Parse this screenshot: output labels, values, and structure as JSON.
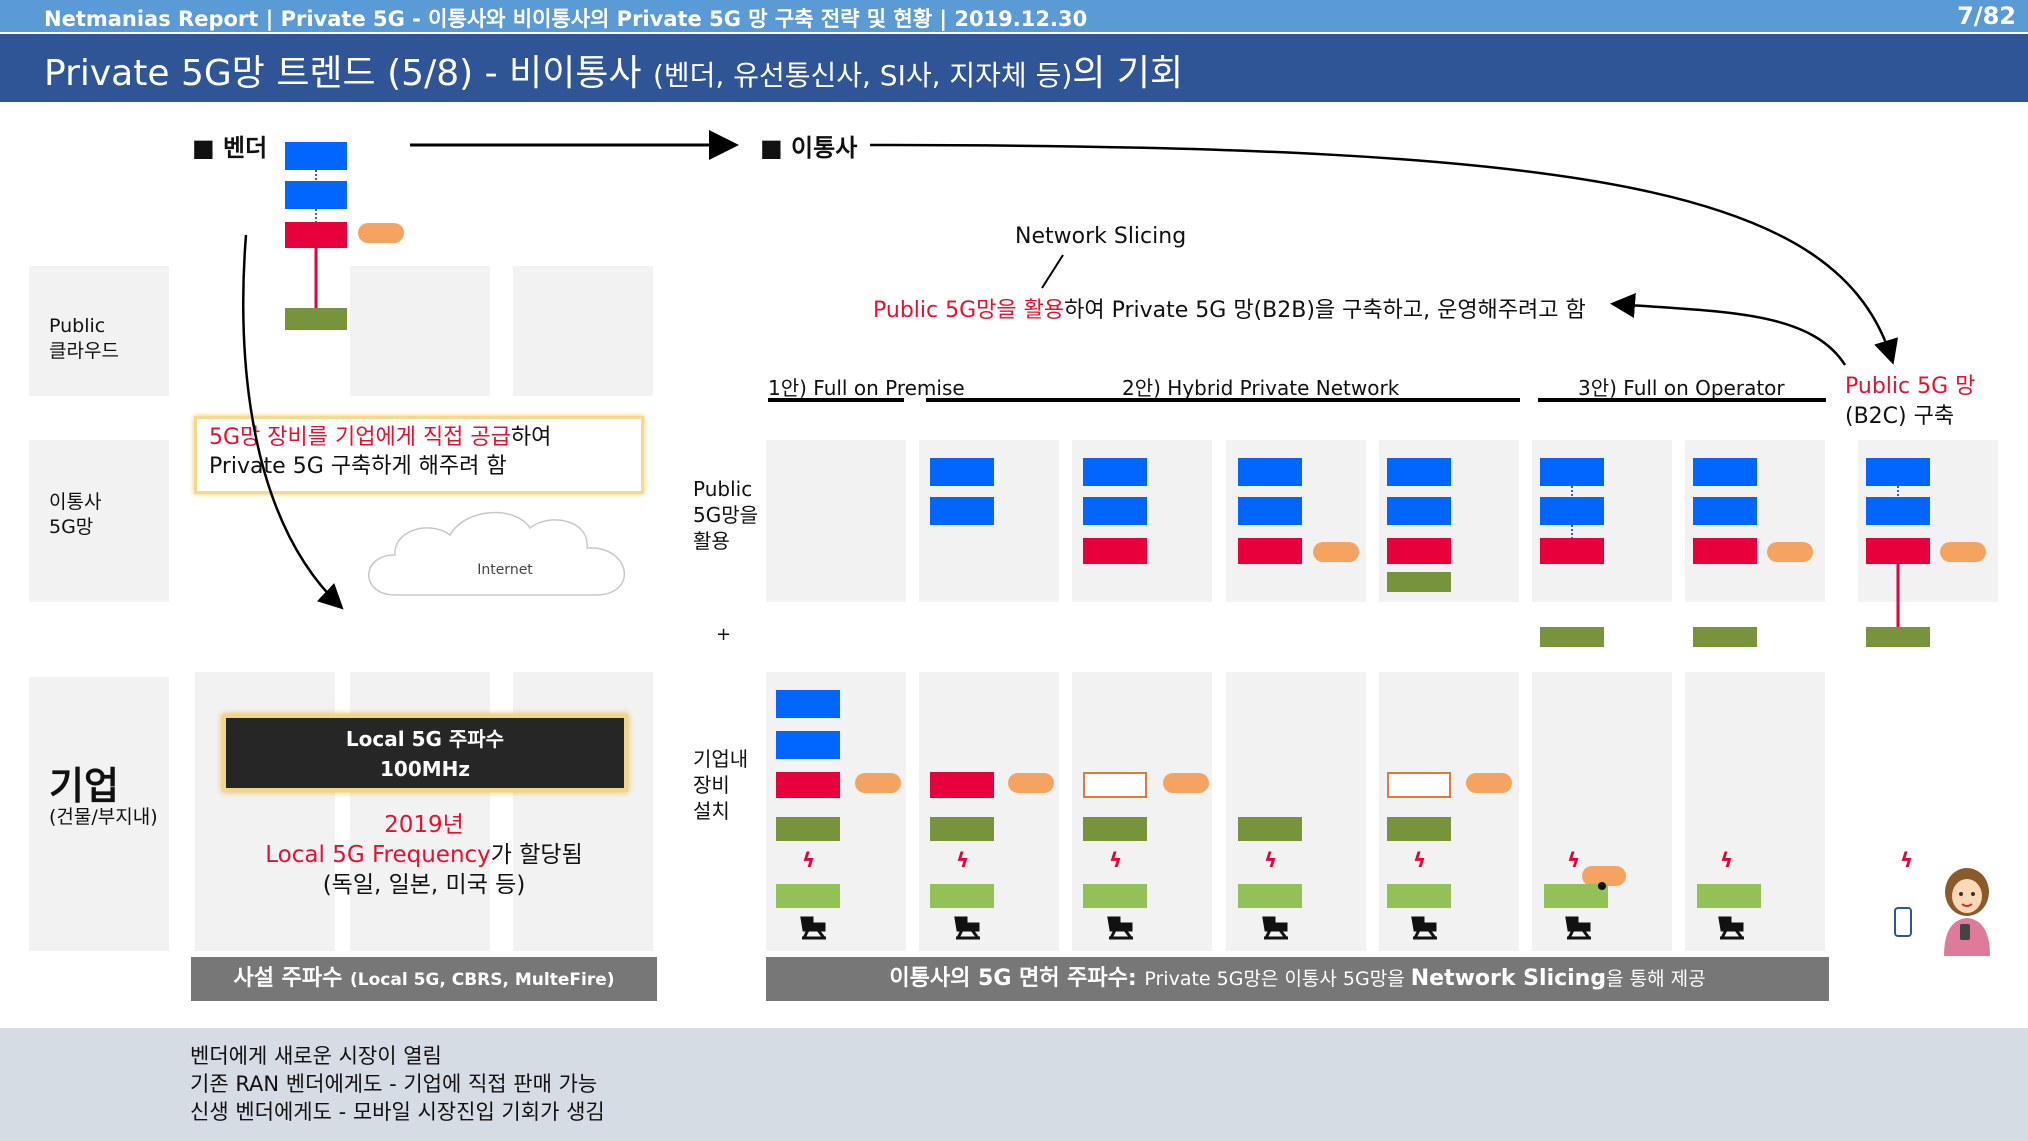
{
  "header": {
    "top_left": "Netmanias Report | Private 5G - 이통사와 비이통사의 Private 5G 망 구축 전략 및 현황  | 2019.12.30",
    "page": "7/82",
    "title_main": "Private 5G망 트렌드 (5/8) - 비이통사 ",
    "title_small": "(벤더, 유선통신사, SI사, 지자체 등)",
    "title_end": "의 기회"
  },
  "left": {
    "vendor": "■ 벤더",
    "row_public_cloud": [
      "Public",
      "클라우드"
    ],
    "row_carrier_5g": [
      "이통사",
      "5G망"
    ],
    "row_enterprise": "기업",
    "row_enterprise_sub": "(건물/부지내)",
    "callout_red": "5G망 장비를 기업에게 직접 공급",
    "callout_black1": "하여",
    "callout_line2": "Private 5G 구축하게 해주려 함",
    "internet": "Internet",
    "local_box_1": "Local 5G 주파수",
    "local_box_2": "100MHz",
    "year": "2019년",
    "freq_red": "Local 5G Frequency",
    "freq_black": "가 할당됨",
    "countries": "(독일, 일본, 미국 등)",
    "private_bar_main": "사설 주파수 ",
    "private_bar_small": "(Local 5G, CBRS, MulteFire)"
  },
  "right": {
    "carrier": "■ 이통사",
    "network_slicing": "Network Slicing",
    "ns_red": "Public 5G망을 활용",
    "ns_black": "하여 Private 5G 망(B2B)을 구축하고, 운영해주려고 함",
    "opt1": "1안) Full on Premise",
    "opt2": "2안) Hybrid Private Network",
    "opt3": "3안) Full on Operator",
    "b2c_red": "Public 5G 망",
    "b2c_black": "(B2C) 구축",
    "use_public": [
      "Public",
      "5G망을",
      "활용"
    ],
    "plus": "+",
    "onsite": [
      "기업내",
      "장비",
      "설치"
    ],
    "licensed_bar_main": "이통사의 5G 면허 주파수: ",
    "licensed_bar_n1": "Private 5G망은 이통사 5G망을 ",
    "licensed_bar_b": "Network Slicing",
    "licensed_bar_n2": "을 통해 제공"
  },
  "bottom": {
    "lines": [
      "벤더에게 새로운 시장이 열림",
      "기존 RAN 벤더에게도 - 기업에 직접 판매 가능",
      "신생 벤더에게도 - 모바일 시장진입 기회가 생김"
    ]
  },
  "colors": {
    "blue_block": "#0066ff",
    "red_block": "#e8003d",
    "green_block": "#77933c",
    "orange_pill": "#f4a460",
    "title_bar": "#2f5597",
    "top_bar": "#5b9bd5"
  }
}
